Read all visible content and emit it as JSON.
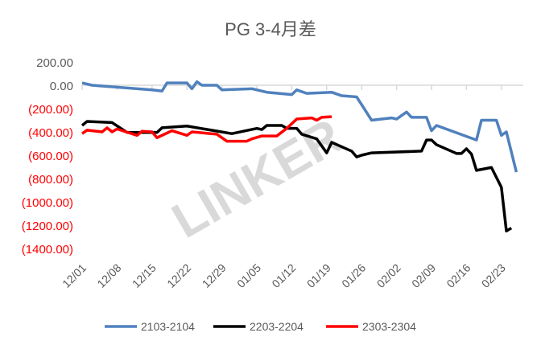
{
  "chart_data": {
    "type": "line",
    "title": "PG 3-4月差",
    "xlabel": "",
    "ylabel": "",
    "ylim": [
      -1400,
      200
    ],
    "yticks": [
      200,
      0,
      -200,
      -400,
      -600,
      -800,
      -1000,
      -1200,
      -1400
    ],
    "ytick_labels": [
      "200.00",
      "0.00",
      "(200.00)",
      "(400.00)",
      "(600.00)",
      "(800.00)",
      "(1000.00)",
      "(1200.00)",
      "(1400.00)"
    ],
    "negative_label_color": "#ff0000",
    "xtick_labels": [
      "12/01",
      "12/08",
      "12/15",
      "12/22",
      "12/29",
      "01/05",
      "01/12",
      "01/19",
      "01/26",
      "02/02",
      "02/09",
      "02/16",
      "02/23"
    ],
    "grid": false,
    "legend": "bottom",
    "watermark": "LINKER",
    "series": [
      {
        "name": "2103-2104",
        "color": "#4f81bd",
        "points": [
          [
            "12/01",
            20
          ],
          [
            "12/03",
            0
          ],
          [
            "12/15",
            -40
          ],
          [
            "12/17",
            -50
          ],
          [
            "12/18",
            20
          ],
          [
            "12/22",
            20
          ],
          [
            "12/23",
            -30
          ],
          [
            "12/24",
            30
          ],
          [
            "12/25",
            0
          ],
          [
            "12/28",
            0
          ],
          [
            "12/29",
            -40
          ],
          [
            "01/04",
            -30
          ],
          [
            "01/07",
            -60
          ],
          [
            "01/12",
            -80
          ],
          [
            "01/13",
            -40
          ],
          [
            "01/15",
            -70
          ],
          [
            "01/20",
            -60
          ],
          [
            "01/22",
            -90
          ],
          [
            "01/25",
            -100
          ],
          [
            "01/28",
            -300
          ],
          [
            "02/01",
            -280
          ],
          [
            "02/02",
            -290
          ],
          [
            "02/04",
            -230
          ],
          [
            "02/05",
            -275
          ],
          [
            "02/08",
            -275
          ],
          [
            "02/09",
            -390
          ],
          [
            "02/10",
            -345
          ],
          [
            "02/18",
            -470
          ],
          [
            "02/19",
            -300
          ],
          [
            "02/22",
            -300
          ],
          [
            "02/23",
            -430
          ],
          [
            "02/24",
            -400
          ],
          [
            "02/26",
            -745
          ]
        ]
      },
      {
        "name": "2203-2204",
        "color": "#000000",
        "points": [
          [
            "12/01",
            -345
          ],
          [
            "12/02",
            -310
          ],
          [
            "12/07",
            -320
          ],
          [
            "12/10",
            -405
          ],
          [
            "12/16",
            -405
          ],
          [
            "12/17",
            -365
          ],
          [
            "12/22",
            -350
          ],
          [
            "12/31",
            -415
          ],
          [
            "01/05",
            -370
          ],
          [
            "01/06",
            -380
          ],
          [
            "01/07",
            -345
          ],
          [
            "01/10",
            -345
          ],
          [
            "01/11",
            -370
          ],
          [
            "01/13",
            -370
          ],
          [
            "01/14",
            -420
          ],
          [
            "01/17",
            -460
          ],
          [
            "01/19",
            -580
          ],
          [
            "01/20",
            -490
          ],
          [
            "01/24",
            -565
          ],
          [
            "01/25",
            -615
          ],
          [
            "01/26",
            -600
          ],
          [
            "01/28",
            -580
          ],
          [
            "02/07",
            -565
          ],
          [
            "02/08",
            -470
          ],
          [
            "02/09",
            -470
          ],
          [
            "02/10",
            -510
          ],
          [
            "02/14",
            -585
          ],
          [
            "02/15",
            -585
          ],
          [
            "02/16",
            -545
          ],
          [
            "02/17",
            -590
          ],
          [
            "02/18",
            -730
          ],
          [
            "02/21",
            -705
          ],
          [
            "02/23",
            -875
          ],
          [
            "02/24",
            -1250
          ],
          [
            "02/25",
            -1225
          ]
        ]
      },
      {
        "name": "2303-2304",
        "color": "#ff0000",
        "points": [
          [
            "12/01",
            -415
          ],
          [
            "12/02",
            -385
          ],
          [
            "12/05",
            -400
          ],
          [
            "12/06",
            -365
          ],
          [
            "12/07",
            -400
          ],
          [
            "12/08",
            -375
          ],
          [
            "12/12",
            -430
          ],
          [
            "12/13",
            -395
          ],
          [
            "12/15",
            -400
          ],
          [
            "12/16",
            -450
          ],
          [
            "12/19",
            -390
          ],
          [
            "12/22",
            -430
          ],
          [
            "12/23",
            -400
          ],
          [
            "12/28",
            -420
          ],
          [
            "12/30",
            -480
          ],
          [
            "01/03",
            -480
          ],
          [
            "01/04",
            -460
          ],
          [
            "01/06",
            -435
          ],
          [
            "01/09",
            -435
          ],
          [
            "01/11",
            -370
          ],
          [
            "01/13",
            -290
          ],
          [
            "01/16",
            -280
          ],
          [
            "01/17",
            -300
          ],
          [
            "01/18",
            -275
          ],
          [
            "01/20",
            -270
          ]
        ]
      }
    ]
  }
}
